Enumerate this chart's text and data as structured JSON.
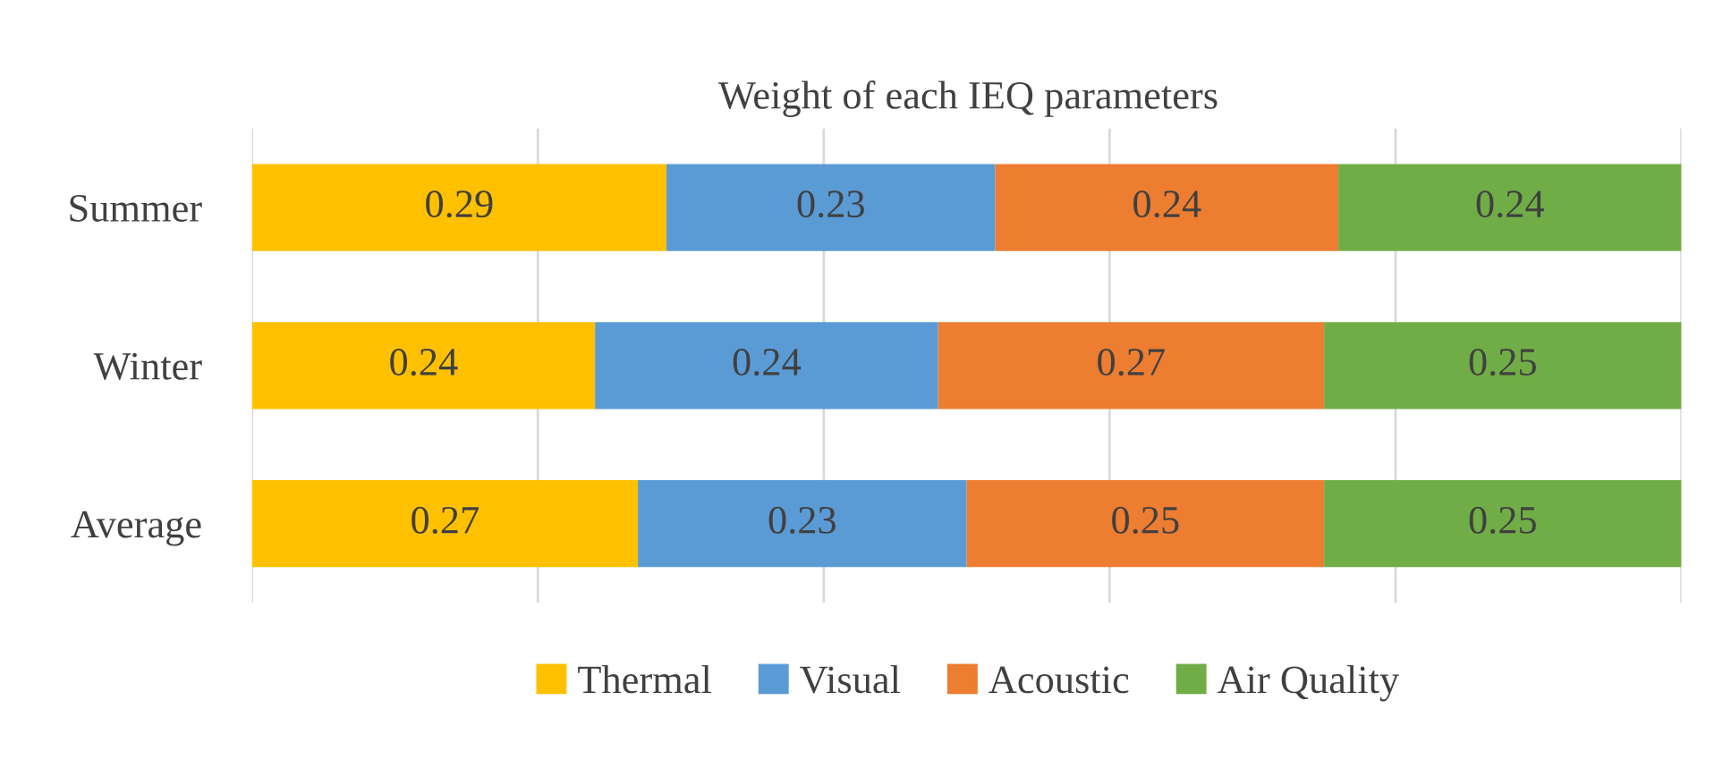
{
  "chart_data": {
    "type": "bar",
    "orientation": "horizontal",
    "stacked": true,
    "title": "Weight of each IEQ parameters",
    "categories": [
      "Summer",
      "Winter",
      "Average"
    ],
    "series": [
      {
        "name": "Thermal",
        "color": "#ffc000",
        "values": [
          0.29,
          0.24,
          0.27
        ]
      },
      {
        "name": "Visual",
        "color": "#5b9bd5",
        "values": [
          0.23,
          0.24,
          0.23
        ]
      },
      {
        "name": "Acoustic",
        "color": "#ed7d31",
        "values": [
          0.24,
          0.27,
          0.25
        ]
      },
      {
        "name": "Air Quality",
        "color": "#70ad47",
        "values": [
          0.24,
          0.25,
          0.25
        ]
      }
    ],
    "xlim": [
      0,
      1
    ],
    "xticks": [
      {
        "value": 0,
        "label": null
      },
      {
        "value": 0.2,
        "label": null
      },
      {
        "value": 0.4,
        "label": null
      },
      {
        "value": 0.6,
        "label": null
      },
      {
        "value": 0.8,
        "label": null
      },
      {
        "value": 1,
        "label": null
      }
    ],
    "tick_labels": "y",
    "grid": "x",
    "legend": "bottom",
    "data_labels": true
  }
}
